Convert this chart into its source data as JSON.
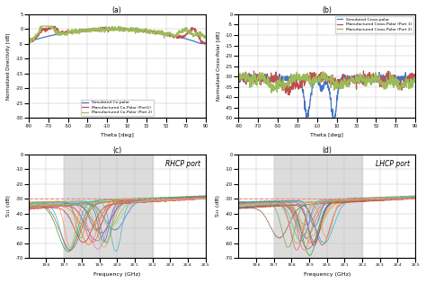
{
  "fig_width": 4.74,
  "fig_height": 3.15,
  "panel_a": {
    "title": "(a)",
    "xlabel": "Theta [deg]",
    "ylabel": "Normalized Directivity [dB]",
    "xlim": [
      -90,
      90
    ],
    "ylim": [
      -30,
      5
    ],
    "yticks": [
      5,
      0,
      -5,
      -10,
      -15,
      -20,
      -25,
      -30
    ],
    "legend": [
      "Simulated Co-polar",
      "Manufactured Co-Polar (Port1)",
      "Manufactured Co-Polar (Port 2)"
    ],
    "colors": [
      "#4472C4",
      "#C0504D",
      "#9BBB59"
    ]
  },
  "panel_b": {
    "title": "(b)",
    "xlabel": "Theta [deg]",
    "ylabel": "Normalized Cross-Polar [dB]",
    "xlim": [
      -90,
      90
    ],
    "ylim": [
      -50,
      0
    ],
    "yticks": [
      0,
      -5,
      -10,
      -15,
      -20,
      -25,
      -30,
      -35,
      -40,
      -45,
      -50
    ],
    "legend": [
      "Simulated Cross-polar",
      "Manufactured Cross-Polar (Port 1)",
      "Manufactured Cross-Polar (Port 2)"
    ],
    "colors": [
      "#4472C4",
      "#C0504D",
      "#9BBB59"
    ]
  },
  "panel_c": {
    "title": "RHCP port",
    "sublabel": "(c)",
    "xlabel": "Frequency (GHz)",
    "ylabel": "S₁₁ (dB)",
    "xlim": [
      19.5,
      20.5
    ],
    "ylim": [
      -70,
      0
    ],
    "yticks": [
      0,
      -10,
      -20,
      -30,
      -40,
      -50,
      -60,
      -70
    ],
    "band_start": 19.7,
    "band_end": 20.2,
    "ref_line": -30,
    "ref_color": "#FF8888",
    "bg_color": "#DCDCDC"
  },
  "panel_d": {
    "title": "LHCP port",
    "sublabel": "(d)",
    "xlabel": "Frequency (GHz)",
    "ylabel": "S₁₁ (dB)",
    "xlim": [
      19.5,
      20.5
    ],
    "ylim": [
      -70,
      0
    ],
    "yticks": [
      0,
      -10,
      -20,
      -30,
      -40,
      -50,
      -60,
      -70
    ],
    "band_start": 19.7,
    "band_end": 20.2,
    "ref_line": -30,
    "ref_color": "#FF8888",
    "bg_color": "#DCDCDC"
  },
  "sp_line_colors": [
    "#1f77b4",
    "#ff7f0e",
    "#2ca02c",
    "#d62728",
    "#9467bd",
    "#8c564b",
    "#e377c2",
    "#7f7f7f",
    "#bcbd22",
    "#17becf",
    "#4472C4",
    "#C0504D",
    "#9BBB59",
    "#F79646",
    "#8064A2",
    "#4BACC6",
    "#F45678",
    "#70AD47",
    "#ED7D31",
    "#A9D18E"
  ]
}
